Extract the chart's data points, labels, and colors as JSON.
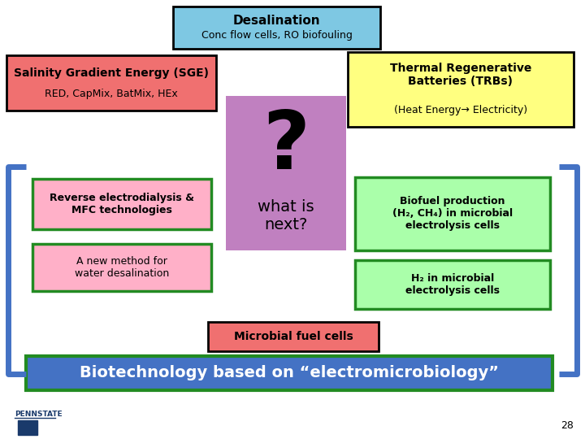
{
  "title1": "Desalination",
  "title2": "Conc flow cells, RO biofouling",
  "title_box_color": "#7EC8E3",
  "title_box_edge": "#000000",
  "sge_title": "Salinity Gradient Energy (SGE)",
  "sge_sub": "RED, CapMix, BatMix, HEx",
  "sge_box_color": "#F07070",
  "sge_box_edge": "#000000",
  "trb_title": "Thermal Regenerative\nBatteries (TRBs)",
  "trb_sub": "(Heat Energy→ Electricity)",
  "trb_box_color": "#FFFF80",
  "trb_box_edge": "#000000",
  "qmark": "?",
  "qmark_box_color": "#C080C0",
  "what_is_next": "what is\nnext?",
  "rev_ed_title": "Reverse electrodialysis &\nMFC technologies",
  "rev_ed_box_color": "#FFB0C8",
  "rev_ed_box_edge": "#228B22",
  "new_method_title": "A new method for\nwater desalination",
  "new_method_box_color": "#FFB0C8",
  "new_method_box_edge": "#228B22",
  "biofuel_title": "Biofuel production\n(H₂, CH₄) in microbial\nelectrolysis cells",
  "biofuel_box_color": "#AAFFAA",
  "biofuel_box_edge": "#228B22",
  "h2_title": "H₂ in microbial\nelectrolysis cells",
  "h2_box_color": "#AAFFAA",
  "h2_box_edge": "#228B22",
  "microbial_title": "Microbial fuel cells",
  "microbial_box_color": "#F07070",
  "microbial_box_edge": "#000000",
  "biotech_title": "Biotechnology based on “electromicrobiology”",
  "biotech_box_color": "#4472C4",
  "biotech_box_edge": "#228B22",
  "bracket_color": "#4472C4",
  "bg_color": "#FFFFFF",
  "slide_number": "28"
}
